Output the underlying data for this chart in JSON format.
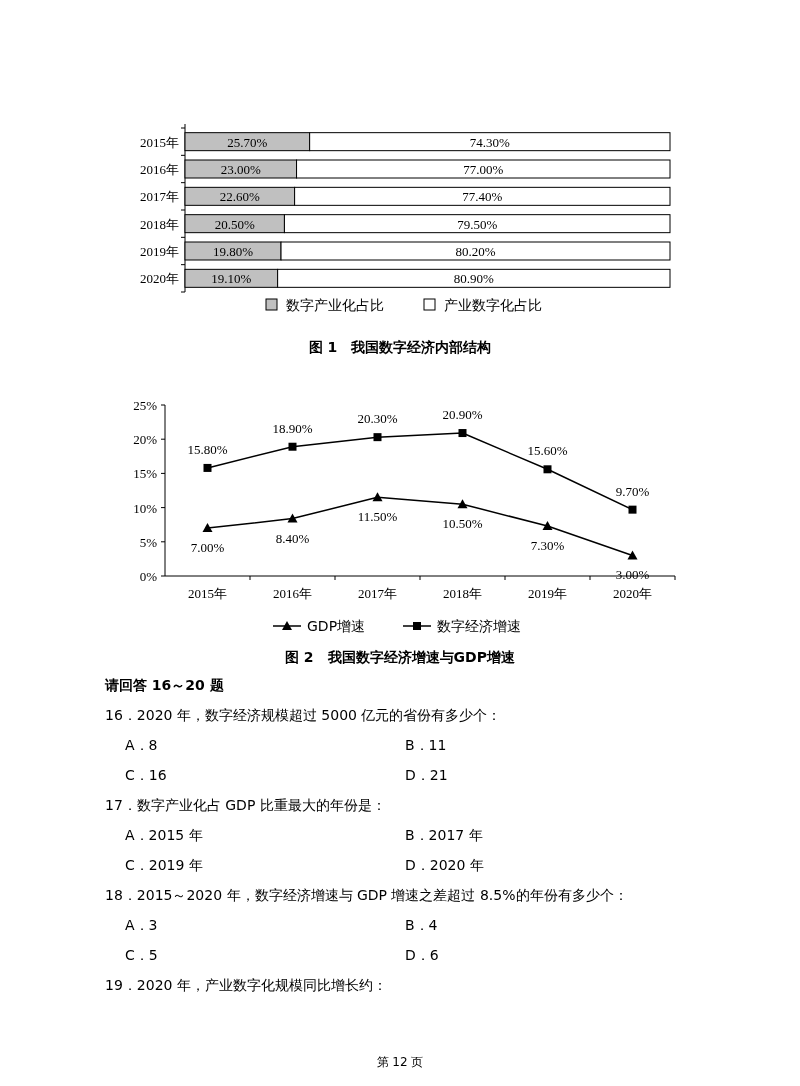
{
  "chart_data": [
    {
      "type": "bar",
      "orientation": "horizontal",
      "stacked": true,
      "title": "图 1　我国数字经济内部结构",
      "legend": "bottom",
      "categories": [
        "2015年",
        "2016年",
        "2017年",
        "2018年",
        "2019年",
        "2020年"
      ],
      "series": [
        {
          "name": "数字产业化占比",
          "color": "#c0c0c0",
          "values": [
            25.7,
            23.0,
            22.6,
            20.5,
            19.8,
            19.1
          ],
          "value_labels": [
            "25.70%",
            "23.00%",
            "22.60%",
            "20.50%",
            "19.80%",
            "19.10%"
          ]
        },
        {
          "name": "产业数字化占比",
          "color": "#ffffff",
          "values": [
            74.3,
            77.0,
            77.4,
            79.5,
            80.2,
            80.9
          ],
          "value_labels": [
            "74.30%",
            "77.00%",
            "77.40%",
            "79.50%",
            "80.20%",
            "80.90%"
          ]
        }
      ]
    },
    {
      "type": "line",
      "title": "图 2　我国数字经济增速与GDP增速",
      "legend": "bottom",
      "categories": [
        "2015年",
        "2016年",
        "2017年",
        "2018年",
        "2019年",
        "2020年"
      ],
      "ylim": [
        0,
        25
      ],
      "yticks": [
        {
          "value": 0,
          "label": "0%"
        },
        {
          "value": 5,
          "label": "5%"
        },
        {
          "value": 10,
          "label": "10%"
        },
        {
          "value": 15,
          "label": "15%"
        },
        {
          "value": 20,
          "label": "20%"
        },
        {
          "value": 25,
          "label": "25%"
        }
      ],
      "series": [
        {
          "name": "GDP增速",
          "color": "#000000",
          "marker": "triangle",
          "values": [
            7.0,
            8.4,
            11.5,
            10.5,
            7.3,
            3.0
          ],
          "value_labels": [
            "7.00%",
            "8.40%",
            "11.50%",
            "10.50%",
            "7.30%",
            "3.00%"
          ]
        },
        {
          "name": "数字经济增速",
          "color": "#000000",
          "marker": "square",
          "values": [
            15.8,
            18.9,
            20.3,
            20.9,
            15.6,
            9.7
          ],
          "value_labels": [
            "15.80%",
            "18.90%",
            "20.30%",
            "20.90%",
            "15.60%",
            "9.70%"
          ]
        }
      ]
    },
    {
      "type": "other",
      "annotations": [
        "请回答 16～20 题",
        "16．2020 年，数字经济规模超过 5000 亿元的省份有多少个：",
        "A．8\tB．11",
        "C．16\tD．21",
        "17．数字产业化占 GDP 比重最大的年份是：",
        "A．2015 年\tB．2017 年",
        "C．2019 年\tD．2020 年",
        "18．2015～2020 年，数字经济增速与 GDP 增速之差超过 8.5%的年份有多少个：",
        "A．3\tB．4",
        "C．5\tD．6",
        "19．2020 年，产业数字化规模同比增长约：",
        "第 12 页"
      ]
    }
  ]
}
